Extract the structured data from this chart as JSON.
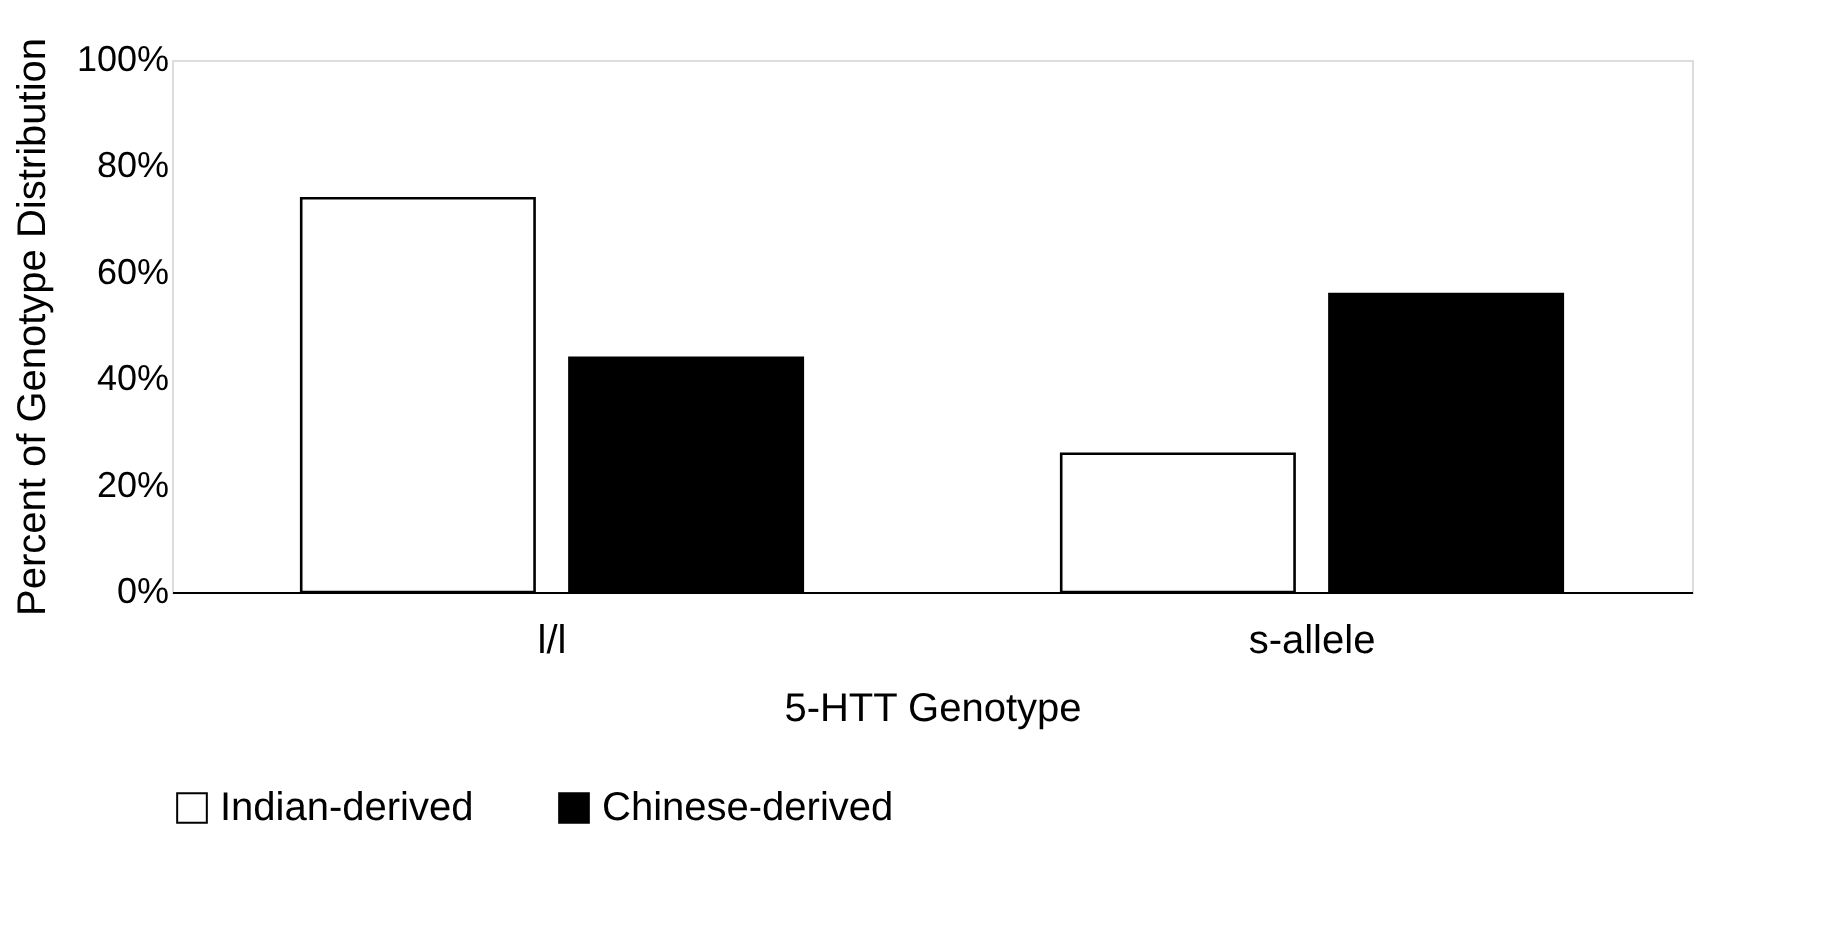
{
  "chart_data": {
    "type": "bar",
    "xlabel": "5-HTT Genotype",
    "ylabel": "Percent of Genotype Distribution",
    "categories": [
      "l/l",
      "s-allele"
    ],
    "series": [
      {
        "name": "Indian-derived",
        "color": "#ffffff",
        "values": [
          74,
          26
        ]
      },
      {
        "name": "Chinese-derived",
        "color": "#000000",
        "values": [
          44,
          56
        ]
      }
    ],
    "ylim": [
      0,
      100
    ],
    "yticks": [
      {
        "value": 0,
        "label": "0%"
      },
      {
        "value": 20,
        "label": "20%"
      },
      {
        "value": 40,
        "label": "40%"
      },
      {
        "value": 60,
        "label": "60%"
      },
      {
        "value": 80,
        "label": "80%"
      },
      {
        "value": 100,
        "label": "100%"
      }
    ],
    "grid": false,
    "legend": "bottom"
  }
}
